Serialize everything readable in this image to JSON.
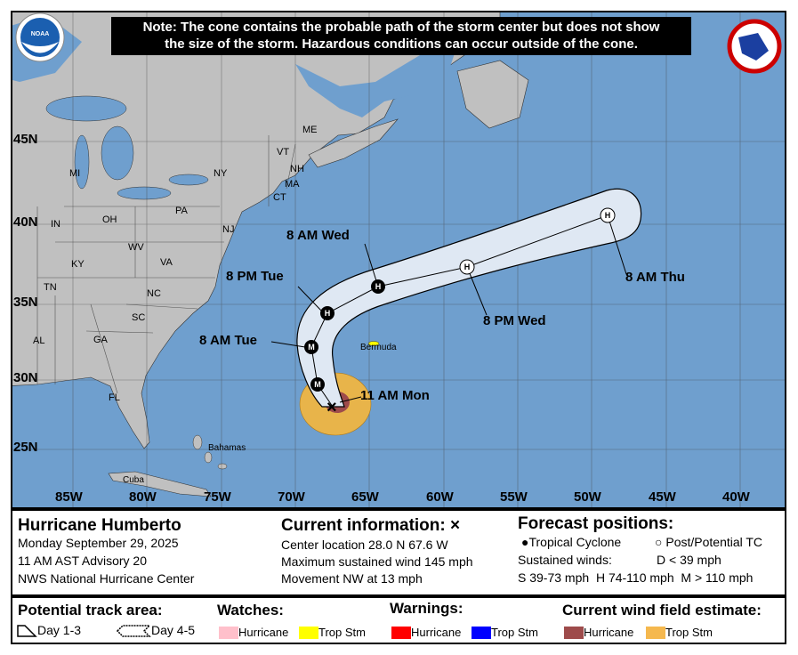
{
  "note": [
    "Note: The cone contains the probable path of the storm center but does not show",
    "the size of the storm. Hazardous conditions can occur outside of the cone."
  ],
  "logos": {
    "left": "NOAA",
    "right": "NATIONAL WEATHER SERVICE"
  },
  "lat_labels": [
    "45N",
    "40N",
    "35N",
    "30N",
    "25N"
  ],
  "lon_labels": [
    "85W",
    "80W",
    "75W",
    "70W",
    "65W",
    "60W",
    "55W",
    "50W",
    "45W",
    "40W"
  ],
  "states": [
    "ME",
    "VT",
    "NH",
    "MA",
    "CT",
    "NY",
    "PA",
    "NJ",
    "MI",
    "OH",
    "IN",
    "WV",
    "VA",
    "KY",
    "TN",
    "NC",
    "SC",
    "GA",
    "AL",
    "FL"
  ],
  "places": {
    "bermuda": "Bermuda",
    "bahamas": "Bahamas",
    "cuba": "Cuba"
  },
  "forecast_points": [
    {
      "time": "11 AM Mon",
      "type": "current",
      "lat": 28.0,
      "lon": 67.6
    },
    {
      "time": "",
      "type": "M",
      "filled": true
    },
    {
      "time": "8 AM Tue",
      "type": "M",
      "filled": true
    },
    {
      "time": "8 PM Tue",
      "type": "H",
      "filled": true
    },
    {
      "time": "8 AM Wed",
      "type": "H",
      "filled": true
    },
    {
      "time": "8 PM Wed",
      "type": "H",
      "filled": false
    },
    {
      "time": "8 AM Thu",
      "type": "H",
      "filled": false
    }
  ],
  "colors": {
    "ocean": "#6f9fce",
    "land": "#c0c0c0",
    "cone": "#dfe8f3",
    "hurricane_wind": "#9e4b4b",
    "ts_wind": "#e8b44a",
    "hurr_watch": "#ffc0cb",
    "ts_watch": "#ffff00",
    "hurr_warn": "#ff0000",
    "ts_warn": "#0000ff"
  },
  "info": {
    "storm": "Hurricane Humberto",
    "date": "Monday September 29, 2025",
    "advisory": "11 AM AST Advisory 20",
    "center": "NWS National Hurricane Center"
  },
  "current": {
    "title": "Current information: ×",
    "location": "Center location 28.0 N 67.6 W",
    "wind": "Maximum sustained wind 145 mph",
    "movement": "Movement NW at 13 mph"
  },
  "forecast": {
    "title": "Forecast positions:",
    "tc": "Tropical Cyclone",
    "ptc": "Post/Potential TC",
    "sustained": "Sustained winds:",
    "d": "D < 39 mph",
    "shm": "S 39-73 mph  H 74-110 mph  M > 110 mph"
  },
  "legend": {
    "track_title": "Potential track area:",
    "day13": "Day 1-3",
    "day45": "Day 4-5",
    "watches": "Watches:",
    "warnings": "Warnings:",
    "wind": "Current wind field estimate:",
    "hurricane": "Hurricane",
    "tropstm": "Trop Stm"
  }
}
